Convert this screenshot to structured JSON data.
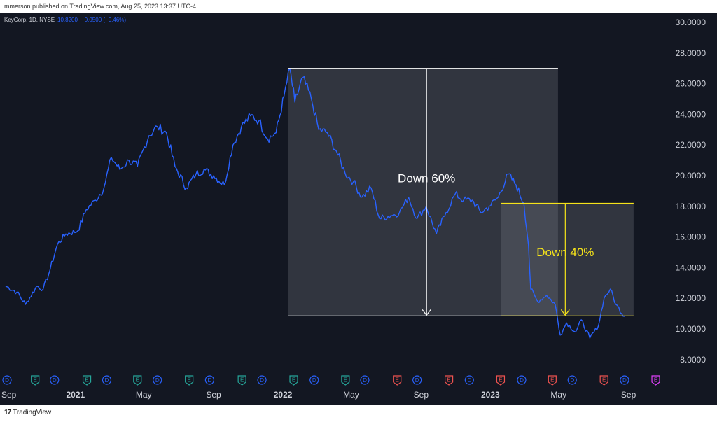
{
  "header": {
    "published": "mmerson published on TradingView.com, Aug 25, 2023 13:37 UTC-4"
  },
  "legend": {
    "symbol": "KeyCorp, 1D, NYSE",
    "last": "10.8200",
    "change": "−0.0500 (−0.46%)"
  },
  "footer": {
    "brand": "TradingView"
  },
  "colors": {
    "background": "#131722",
    "price_line": "#2962ff",
    "white_annotation": "#ffffff",
    "yellow_annotation": "#f5e31a",
    "dividend": "#2962ff",
    "earnings_green": "#26a69a",
    "earnings_red": "#ef5350",
    "earnings_purple": "#e040fb",
    "axis_text": "#d1d4dc"
  },
  "chart_data": {
    "type": "line",
    "title": "KeyCorp, 1D, NYSE",
    "ylim": [
      7.0,
      31.0
    ],
    "y_ticks": [
      "30.0000",
      "28.0000",
      "26.0000",
      "24.0000",
      "22.0000",
      "20.0000",
      "18.0000",
      "16.0000",
      "14.0000",
      "12.0000",
      "10.0000",
      "8.0000"
    ],
    "x_ticks": [
      {
        "label": "Sep",
        "date": "2020-09-01",
        "bold": false
      },
      {
        "label": "2021",
        "date": "2021-01-01",
        "bold": true
      },
      {
        "label": "May",
        "date": "2021-05-01",
        "bold": false
      },
      {
        "label": "Sep",
        "date": "2021-09-01",
        "bold": false
      },
      {
        "label": "2022",
        "date": "2022-01-01",
        "bold": true
      },
      {
        "label": "May",
        "date": "2022-05-01",
        "bold": false
      },
      {
        "label": "Sep",
        "date": "2022-09-01",
        "bold": false
      },
      {
        "label": "2023",
        "date": "2023-01-01",
        "bold": true
      },
      {
        "label": "May",
        "date": "2023-05-01",
        "bold": false
      },
      {
        "label": "Sep",
        "date": "2023-09-01",
        "bold": false
      }
    ],
    "series": [
      {
        "values": [
          [
            "2020-08-31",
            12.8
          ],
          [
            "2020-09-20",
            12.4
          ],
          [
            "2020-10-05",
            11.6
          ],
          [
            "2020-10-25",
            12.8
          ],
          [
            "2020-11-05",
            12.6
          ],
          [
            "2020-11-15",
            13.6
          ],
          [
            "2020-11-30",
            15.5
          ],
          [
            "2020-12-15",
            16.2
          ],
          [
            "2021-01-05",
            16.4
          ],
          [
            "2021-01-20",
            17.8
          ],
          [
            "2021-02-05",
            18.4
          ],
          [
            "2021-02-20",
            19.2
          ],
          [
            "2021-03-05",
            21.2
          ],
          [
            "2021-03-20",
            20.4
          ],
          [
            "2021-04-05",
            21.0
          ],
          [
            "2021-04-20",
            20.6
          ],
          [
            "2021-05-10",
            22.6
          ],
          [
            "2021-05-25",
            23.2
          ],
          [
            "2021-06-10",
            22.8
          ],
          [
            "2021-06-25",
            20.6
          ],
          [
            "2021-07-15",
            19.2
          ],
          [
            "2021-08-01",
            20.1
          ],
          [
            "2021-08-15",
            20.4
          ],
          [
            "2021-09-01",
            20.0
          ],
          [
            "2021-09-20",
            19.4
          ],
          [
            "2021-10-05",
            22.0
          ],
          [
            "2021-10-20",
            23.2
          ],
          [
            "2021-11-05",
            23.9
          ],
          [
            "2021-11-20",
            23.6
          ],
          [
            "2021-12-05",
            22.4
          ],
          [
            "2021-12-20",
            22.8
          ],
          [
            "2022-01-03",
            25.2
          ],
          [
            "2022-01-13",
            27.0
          ],
          [
            "2022-01-22",
            24.8
          ],
          [
            "2022-02-05",
            26.4
          ],
          [
            "2022-02-20",
            25.0
          ],
          [
            "2022-03-05",
            23.0
          ],
          [
            "2022-03-20",
            22.8
          ],
          [
            "2022-04-05",
            21.6
          ],
          [
            "2022-04-20",
            20.2
          ],
          [
            "2022-05-05",
            19.6
          ],
          [
            "2022-05-20",
            18.6
          ],
          [
            "2022-06-05",
            19.2
          ],
          [
            "2022-06-20",
            17.2
          ],
          [
            "2022-07-10",
            17.4
          ],
          [
            "2022-07-25",
            17.6
          ],
          [
            "2022-08-10",
            18.6
          ],
          [
            "2022-08-25",
            17.2
          ],
          [
            "2022-09-10",
            18.0
          ],
          [
            "2022-09-28",
            16.2
          ],
          [
            "2022-10-15",
            17.6
          ],
          [
            "2022-10-31",
            18.8
          ],
          [
            "2022-11-15",
            18.4
          ],
          [
            "2022-11-30",
            18.4
          ],
          [
            "2022-12-15",
            17.6
          ],
          [
            "2022-12-30",
            18.0
          ],
          [
            "2023-01-15",
            18.6
          ],
          [
            "2023-02-01",
            20.1
          ],
          [
            "2023-02-15",
            19.4
          ],
          [
            "2023-03-01",
            18.2
          ],
          [
            "2023-03-09",
            15.5
          ],
          [
            "2023-03-13",
            12.6
          ],
          [
            "2023-03-25",
            11.8
          ],
          [
            "2023-04-10",
            12.2
          ],
          [
            "2023-04-25",
            11.6
          ],
          [
            "2023-05-04",
            9.6
          ],
          [
            "2023-05-15",
            10.4
          ],
          [
            "2023-05-31",
            9.8
          ],
          [
            "2023-06-10",
            10.6
          ],
          [
            "2023-06-25",
            9.4
          ],
          [
            "2023-07-10",
            10.2
          ],
          [
            "2023-07-20",
            12.0
          ],
          [
            "2023-07-31",
            12.6
          ],
          [
            "2023-08-10",
            11.6
          ],
          [
            "2023-08-25",
            10.82
          ]
        ]
      }
    ],
    "annotations": [
      {
        "text": "Down 60%",
        "color": "white",
        "from_date": "2022-01-10",
        "to_date": "2023-04-30",
        "top": 27.0,
        "bottom": 10.85
      },
      {
        "text": "Down 40%",
        "color": "yellow",
        "from_date": "2023-01-20",
        "to_date": "2023-09-10",
        "top": 18.2,
        "bottom": 10.85
      }
    ],
    "events": [
      {
        "kind": "D",
        "date": "2020-08-28"
      },
      {
        "kind": "E",
        "date": "2020-10-22"
      },
      {
        "kind": "D",
        "date": "2020-11-25"
      },
      {
        "kind": "E",
        "date": "2021-01-21"
      },
      {
        "kind": "D",
        "date": "2021-02-25"
      },
      {
        "kind": "E",
        "date": "2021-04-20"
      },
      {
        "kind": "D",
        "date": "2021-05-25"
      },
      {
        "kind": "E",
        "date": "2021-07-20"
      },
      {
        "kind": "D",
        "date": "2021-08-25"
      },
      {
        "kind": "E",
        "date": "2021-10-21"
      },
      {
        "kind": "D",
        "date": "2021-11-25"
      },
      {
        "kind": "E",
        "date": "2022-01-20"
      },
      {
        "kind": "D",
        "date": "2022-02-25"
      },
      {
        "kind": "E",
        "date": "2022-04-21"
      },
      {
        "kind": "D",
        "date": "2022-05-25"
      },
      {
        "kind": "E",
        "date": "2022-07-21"
      },
      {
        "kind": "D",
        "date": "2022-08-25"
      },
      {
        "kind": "E",
        "date": "2022-10-20"
      },
      {
        "kind": "D",
        "date": "2022-11-25"
      },
      {
        "kind": "E",
        "date": "2023-01-19"
      },
      {
        "kind": "D",
        "date": "2023-02-25"
      },
      {
        "kind": "E",
        "date": "2023-04-20"
      },
      {
        "kind": "D",
        "date": "2023-05-25"
      },
      {
        "kind": "E",
        "date": "2023-07-20"
      },
      {
        "kind": "D",
        "date": "2023-08-25"
      },
      {
        "kind": "E",
        "date": "2023-10-19"
      }
    ]
  }
}
